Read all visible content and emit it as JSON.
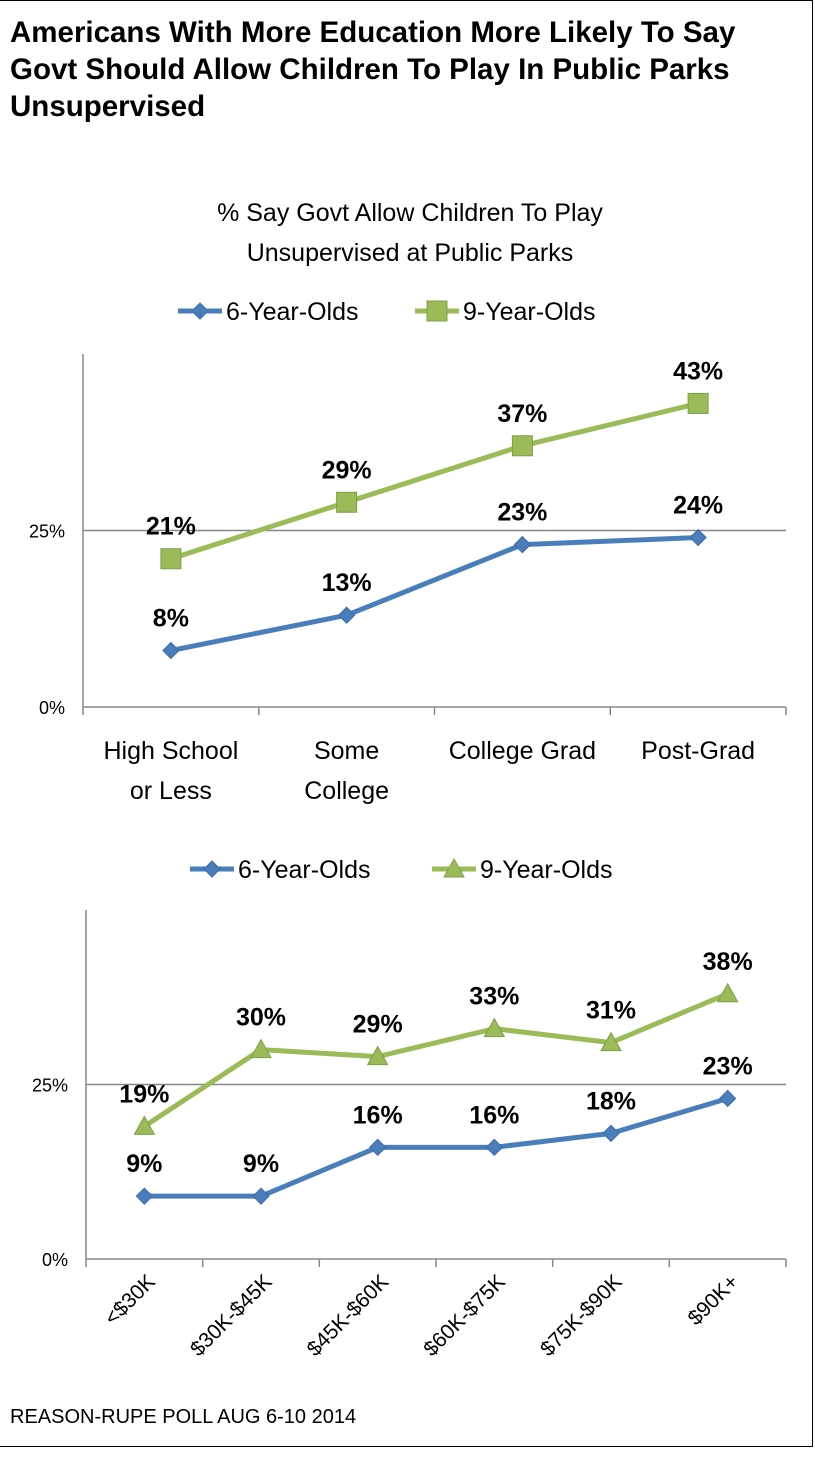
{
  "title": "Americans With More Education More Likely To Say Govt Should Allow Children To Play In Public Parks Unsupervised",
  "source": "REASON-RUPE POLL AUG 6-10 2014",
  "colors": {
    "series1": "#4a7ebb",
    "series2": "#9bbb59",
    "gridline": "#888888",
    "axis": "#888888"
  },
  "chart_data": [
    {
      "type": "line",
      "title_lines": [
        "% Say Govt Allow Children To Play",
        "Unsupervised at Public Parks"
      ],
      "categories": [
        [
          "High School",
          "or Less"
        ],
        [
          "Some",
          "College"
        ],
        [
          "College Grad"
        ],
        [
          "Post-Grad"
        ]
      ],
      "series": [
        {
          "name": "6-Year-Olds",
          "marker": "diamond",
          "values": [
            8,
            13,
            23,
            24
          ],
          "labels": [
            "8%",
            "13%",
            "23%",
            "24%"
          ]
        },
        {
          "name": "9-Year-Olds",
          "marker": "square",
          "values": [
            21,
            29,
            37,
            43
          ],
          "labels": [
            "21%",
            "29%",
            "37%",
            "43%"
          ]
        }
      ],
      "yticks": [
        {
          "value": 0,
          "label": "0%"
        },
        {
          "value": 25,
          "label": "25%"
        }
      ],
      "ylim": [
        0,
        50
      ],
      "grid": true,
      "legend": "top-center"
    },
    {
      "type": "line",
      "title_lines": [],
      "categories": [
        [
          "<$30K"
        ],
        [
          "$30K-$45K"
        ],
        [
          "$45K-$60K"
        ],
        [
          "$60K-$75K"
        ],
        [
          "$75K-$90K"
        ],
        [
          "$90K+"
        ]
      ],
      "series": [
        {
          "name": "6-Year-Olds",
          "marker": "diamond",
          "values": [
            9,
            9,
            16,
            16,
            18,
            23
          ],
          "labels": [
            "9%",
            "9%",
            "16%",
            "16%",
            "18%",
            "23%"
          ]
        },
        {
          "name": "9-Year-Olds",
          "marker": "triangle",
          "values": [
            19,
            30,
            29,
            33,
            31,
            38
          ],
          "labels": [
            "19%",
            "30%",
            "29%",
            "33%",
            "31%",
            "38%"
          ]
        }
      ],
      "yticks": [
        {
          "value": 0,
          "label": "0%"
        },
        {
          "value": 25,
          "label": "25%"
        }
      ],
      "ylim": [
        0,
        50
      ],
      "grid": true,
      "legend": "top-center"
    }
  ]
}
